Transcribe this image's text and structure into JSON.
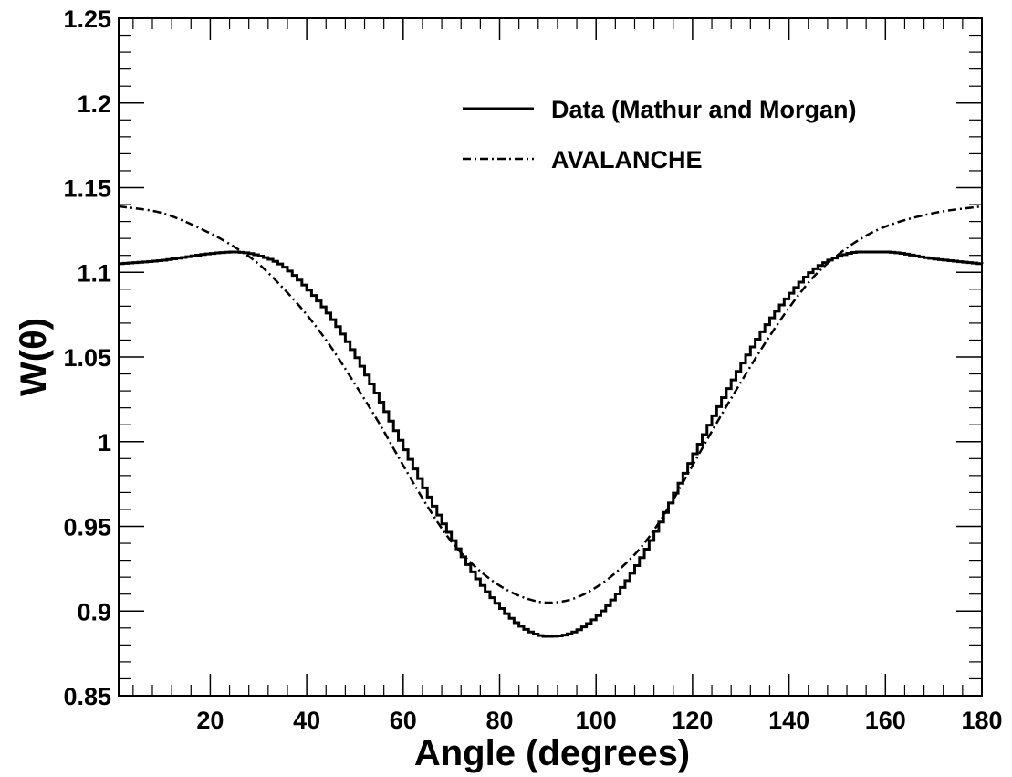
{
  "chart_data": {
    "type": "line",
    "title": "",
    "xlabel": "Angle (degrees)",
    "ylabel": "W(θ)",
    "xlim": [
      1,
      180
    ],
    "ylim": [
      0.85,
      1.25
    ],
    "x_ticks": [
      20,
      40,
      60,
      80,
      100,
      120,
      140,
      160,
      180
    ],
    "y_ticks": [
      "0.85",
      "0.9",
      "0.95",
      "1",
      "1.05",
      "1.1",
      "1.15",
      "1.2",
      "1.25"
    ],
    "grid": false,
    "legend_position": "top-right",
    "series": [
      {
        "name": "Data (Mathur and Morgan)",
        "style": "solid-step",
        "color": "#000000",
        "x": [
          1,
          10,
          20,
          25,
          30,
          35,
          40,
          45,
          50,
          55,
          60,
          65,
          70,
          75,
          80,
          85,
          90,
          95,
          100,
          105,
          110,
          115,
          120,
          125,
          130,
          135,
          140,
          145,
          150,
          155,
          160,
          170,
          180
        ],
        "y": [
          1.105,
          1.107,
          1.111,
          1.112,
          1.11,
          1.104,
          1.091,
          1.074,
          1.052,
          1.026,
          0.998,
          0.97,
          0.944,
          0.921,
          0.903,
          0.89,
          0.885,
          0.887,
          0.896,
          0.912,
          0.934,
          0.961,
          0.99,
          1.018,
          1.044,
          1.067,
          1.086,
          1.101,
          1.109,
          1.112,
          1.112,
          1.108,
          1.105
        ]
      },
      {
        "name": "AVALANCHE",
        "style": "dash-dot",
        "color": "#000000",
        "x": [
          1,
          10,
          20,
          25,
          30,
          35,
          40,
          45,
          50,
          55,
          60,
          65,
          70,
          75,
          80,
          85,
          90,
          95,
          100,
          105,
          110,
          115,
          120,
          125,
          130,
          135,
          140,
          145,
          150,
          155,
          160,
          170,
          180
        ],
        "y": [
          1.139,
          1.135,
          1.123,
          1.115,
          1.105,
          1.091,
          1.075,
          1.056,
          1.034,
          1.011,
          0.986,
          0.962,
          0.941,
          0.926,
          0.915,
          0.908,
          0.905,
          0.907,
          0.914,
          0.925,
          0.94,
          0.961,
          0.986,
          1.011,
          1.035,
          1.058,
          1.079,
          1.097,
          1.11,
          1.12,
          1.127,
          1.135,
          1.139
        ]
      }
    ]
  }
}
